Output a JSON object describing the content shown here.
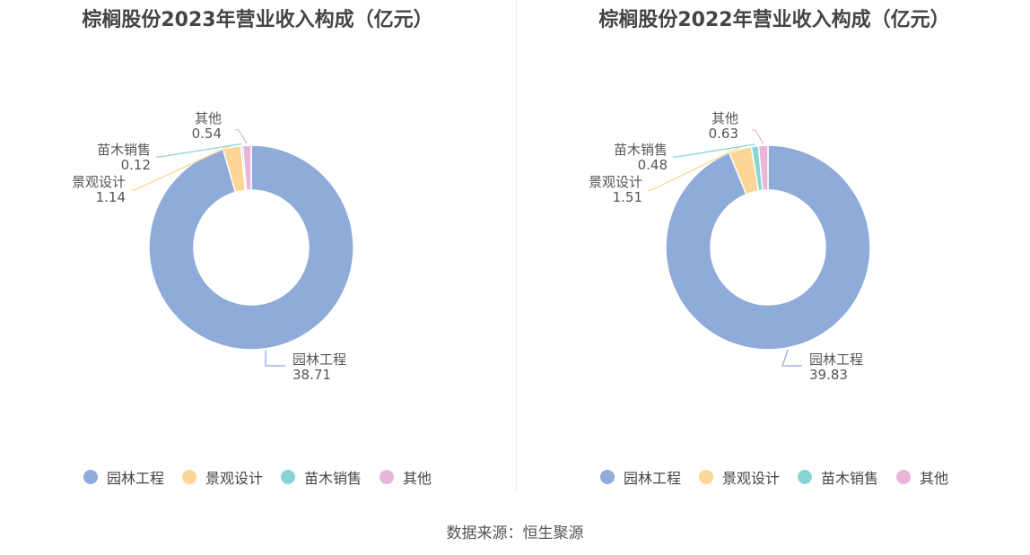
{
  "source": "数据来源：恒生聚源",
  "chart_data": [
    {
      "type": "pie",
      "title": "棕榈股份2023年营业收入构成（亿元）",
      "categories": [
        "园林工程",
        "景观设计",
        "苗木销售",
        "其他"
      ],
      "values": [
        38.71,
        1.14,
        0.12,
        0.54
      ],
      "value_labels": [
        "38.71",
        "1.14",
        "0.12",
        "0.54"
      ],
      "colors": [
        "#8eabd9",
        "#fdd696",
        "#88d5d5",
        "#e8b6d8"
      ],
      "donut": true,
      "legend_position": "bottom"
    },
    {
      "type": "pie",
      "title": "棕榈股份2022年营业收入构成（亿元）",
      "categories": [
        "园林工程",
        "景观设计",
        "苗木销售",
        "其他"
      ],
      "values": [
        39.83,
        1.51,
        0.48,
        0.63
      ],
      "value_labels": [
        "39.83",
        "1.51",
        "0.48",
        "0.63"
      ],
      "colors": [
        "#8eabd9",
        "#fdd696",
        "#88d5d5",
        "#e8b6d8"
      ],
      "donut": true,
      "legend_position": "bottom"
    }
  ]
}
